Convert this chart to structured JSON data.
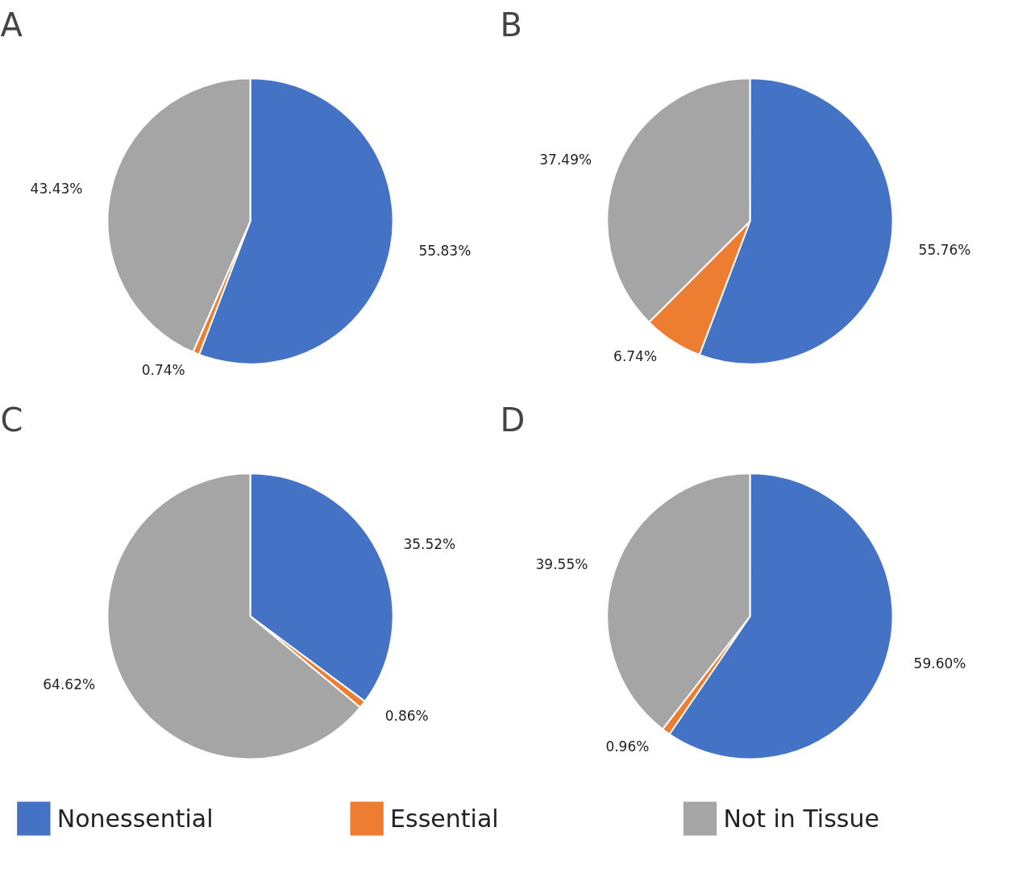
{
  "chart_data": [
    {
      "type": "pie",
      "title": "A",
      "categories": [
        "Nonessential",
        "Essential",
        "Not in Tissue"
      ],
      "values": [
        55.83,
        0.74,
        43.43
      ],
      "colors": [
        "#4472c4",
        "#ed7d31",
        "#a5a5a5"
      ],
      "value_labels": [
        "55.83%",
        "0.74%",
        "43.43%"
      ],
      "legend": "bottom"
    },
    {
      "type": "pie",
      "title": "B",
      "categories": [
        null,
        null,
        null
      ],
      "values": [
        55.76,
        6.74,
        37.49
      ],
      "colors": [
        "#4472c4",
        "#ed7d31",
        "#a5a5a5"
      ],
      "value_labels": [
        "55.76%",
        "6.74%",
        "37.49%"
      ]
    },
    {
      "type": "pie",
      "title": "C",
      "categories": [
        null,
        null,
        null
      ],
      "values": [
        35.52,
        0.86,
        64.62
      ],
      "colors": [
        "#4472c4",
        "#ed7d31",
        "#a5a5a5"
      ],
      "value_labels": [
        "35.52%",
        "0.86%",
        "64.62%"
      ]
    },
    {
      "type": "pie",
      "title": "D",
      "categories": [
        null,
        null,
        null
      ],
      "values": [
        59.6,
        0.96,
        39.55
      ],
      "colors": [
        "#4472c4",
        "#ed7d31",
        "#a5a5a5"
      ],
      "value_labels": [
        "59.60%",
        "0.96%",
        "39.55%"
      ]
    }
  ]
}
